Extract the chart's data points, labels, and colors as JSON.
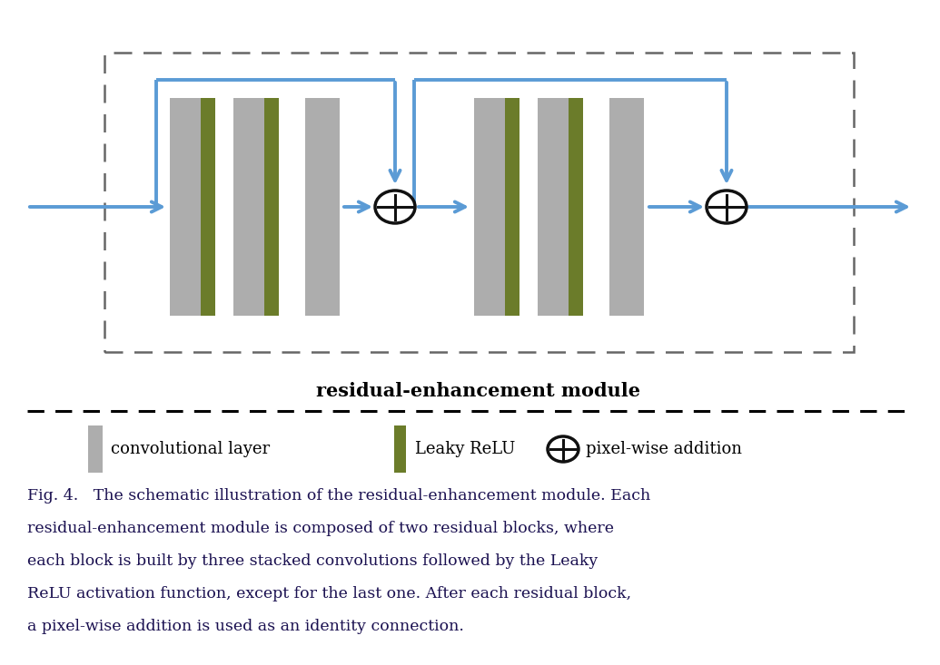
{
  "bg_color": "#ffffff",
  "arrow_color": "#5B9BD5",
  "gray_color": "#ADADAD",
  "green_color": "#6B7C2A",
  "box_border_color": "#666666",
  "circle_color": "#111111",
  "title": "residual-enhancement module",
  "caption_line1": "Fig. 4.   The schematic illustration of the residual-enhancement module. Each",
  "caption_line2": "residual-enhancement module is composed of two residual blocks, where",
  "caption_line3": "each block is built by three stacked convolutions followed by the Leaky",
  "caption_line4": "ReLU activation function, except for the last one. After each residual block,",
  "caption_line5": "a pixel-wise addition is used as an identity connection.",
  "legend_conv": "convolutional layer",
  "legend_relu": "Leaky ReLU",
  "legend_add": "pixel-wise addition"
}
